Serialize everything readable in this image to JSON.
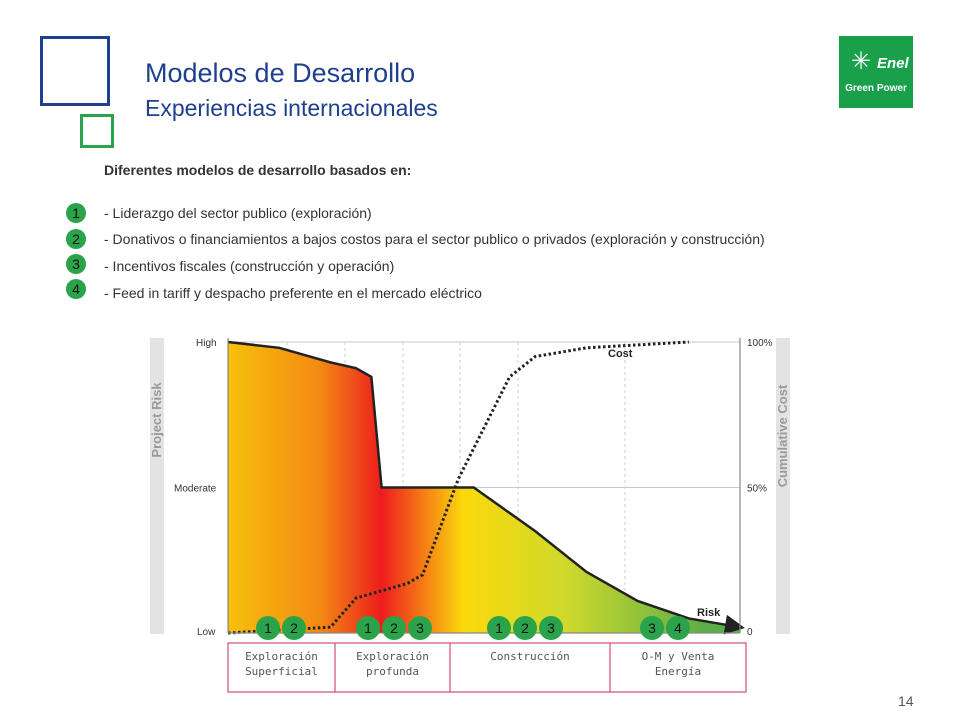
{
  "header": {
    "title": "Modelos de Desarrollo",
    "subtitle": "Experiencias internacionales"
  },
  "logo": {
    "brand": "Enel",
    "sub": "Green Power"
  },
  "intro": "Diferentes modelos de desarrollo basados en:",
  "items": [
    {
      "number": "1",
      "text": "- Liderazgo del sector publico (exploración)"
    },
    {
      "number": "2",
      "text": "- Donativos o financiamientos a bajos costos para el sector publico o privados (exploración y construcción)"
    },
    {
      "number": "3",
      "text": "- Incentivos fiscales (construcción y operación)"
    },
    {
      "number": "4",
      "text": "- Feed in tariff y despacho preferente en el mercado eléctrico"
    }
  ],
  "chart_data": {
    "type": "area",
    "left_axis": {
      "title": "Project Risk",
      "ticks": [
        "High",
        "Moderate",
        "Low"
      ]
    },
    "right_axis": {
      "title": "Cumulative Cost",
      "ticks": [
        "100%",
        "50%",
        "0"
      ],
      "range": [
        0,
        100
      ]
    },
    "x_range": [
      0,
      100
    ],
    "series": [
      {
        "name": "Risk",
        "scale": [
          "Low",
          "Moderate",
          "High"
        ],
        "values": [
          [
            0,
            100
          ],
          [
            10,
            98
          ],
          [
            20,
            93
          ],
          [
            25,
            91
          ],
          [
            28,
            88
          ],
          [
            30,
            50
          ],
          [
            48,
            50
          ],
          [
            60,
            35
          ],
          [
            70,
            21
          ],
          [
            80,
            11
          ],
          [
            90,
            5
          ],
          [
            100,
            2
          ]
        ]
      },
      {
        "name": "Cost",
        "values": [
          [
            0,
            0
          ],
          [
            20,
            2
          ],
          [
            25,
            12
          ],
          [
            35,
            17
          ],
          [
            38,
            20
          ],
          [
            45,
            53
          ],
          [
            55,
            88
          ],
          [
            60,
            95
          ],
          [
            70,
            98
          ],
          [
            90,
            100
          ]
        ]
      }
    ],
    "phase_markers": [
      {
        "phase": 0,
        "numbers": [
          "1",
          "2"
        ]
      },
      {
        "phase": 1,
        "numbers": [
          "1",
          "2",
          "3"
        ]
      },
      {
        "phase": 2,
        "numbers": [
          "1",
          "2",
          "3"
        ]
      },
      {
        "phase": 3,
        "numbers": [
          "3",
          "4"
        ]
      }
    ],
    "phases": [
      "Exploración\nSuperficial",
      "Exploración\nprofunda",
      "Construcción",
      "O-M y  Venta\nEnergía"
    ],
    "colors": {
      "gradient": [
        "#f7c00c",
        "#f38a13",
        "#ee1c1e",
        "#fbd90b",
        "#cfd92c",
        "#5caf48"
      ],
      "marker": "#2aa34a",
      "phase_border": "#d04a82"
    }
  },
  "page_number": "14"
}
